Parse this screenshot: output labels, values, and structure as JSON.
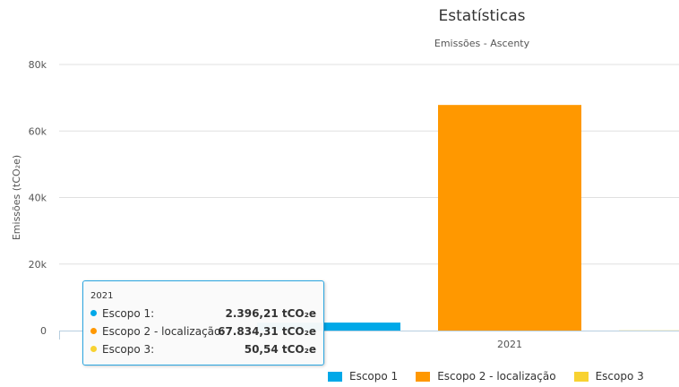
{
  "chart_data": {
    "type": "bar",
    "title": "Estatísticas",
    "subtitle": "Emissões - Ascenty",
    "ylabel": "Emissões (tCO₂e)",
    "xlabel": "",
    "categories": [
      "2021"
    ],
    "ylim": [
      0,
      80000
    ],
    "yticks": [
      "0",
      "20k",
      "40k",
      "60k",
      "80k"
    ],
    "ytick_values": [
      0,
      20000,
      40000,
      60000,
      80000
    ],
    "grid": true,
    "legend_position": "bottom-right",
    "series": [
      {
        "name": "Escopo 1",
        "values": [
          2396.21
        ],
        "color": "#00a8e8"
      },
      {
        "name": "Escopo 2 - localização",
        "values": [
          67834.31
        ],
        "color": "#ff9800"
      },
      {
        "name": "Escopo 3",
        "values": [
          50.54
        ],
        "color": "#f8d231"
      }
    ]
  },
  "tooltip": {
    "header": "2021",
    "rows": [
      {
        "label": "Escopo 1:",
        "value": "2.396,21 tCO₂e"
      },
      {
        "label": "Escopo 2 - localização:",
        "value": "67.834,31 tCO₂e"
      },
      {
        "label": "Escopo 3:",
        "value": "50,54 tCO₂e"
      }
    ]
  }
}
